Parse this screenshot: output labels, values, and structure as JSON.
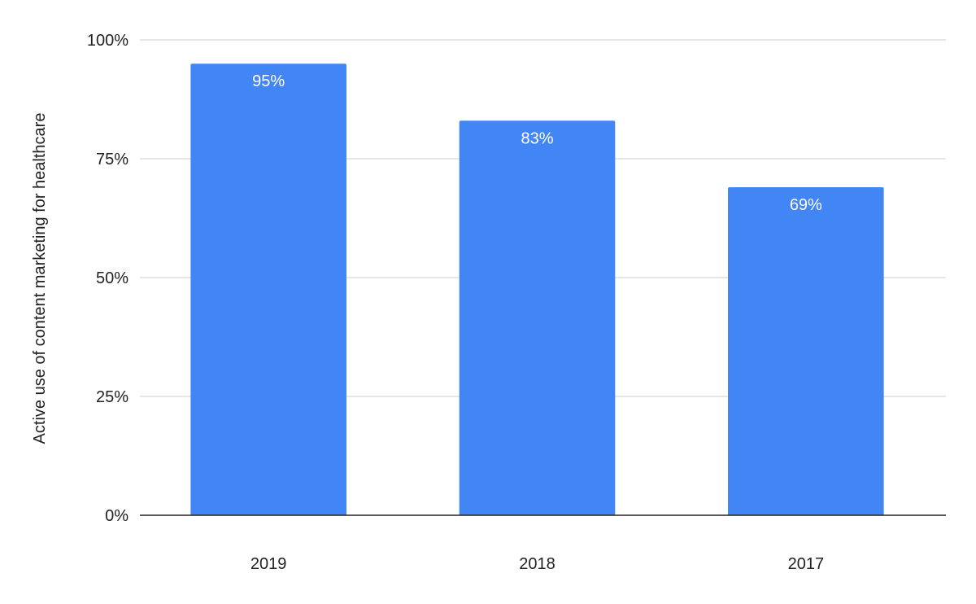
{
  "chart_data": {
    "type": "bar",
    "categories": [
      "2019",
      "2018",
      "2017"
    ],
    "values": [
      95,
      83,
      69
    ],
    "value_labels": [
      "95%",
      "83%",
      "69%"
    ],
    "title": "",
    "xlabel": "",
    "ylabel": "Active use of content marketing for healthcare",
    "ylim": [
      0,
      100
    ],
    "yticks": [
      0,
      25,
      50,
      75,
      100
    ],
    "ytick_labels": [
      "0%",
      "25%",
      "50%",
      "75%",
      "100%"
    ],
    "grid": true,
    "legend": "none"
  },
  "colors": {
    "bar": "#4285f4",
    "grid": "#cccccc",
    "axis": "#222222",
    "text": "#222222",
    "data_label": "#ffffff"
  }
}
